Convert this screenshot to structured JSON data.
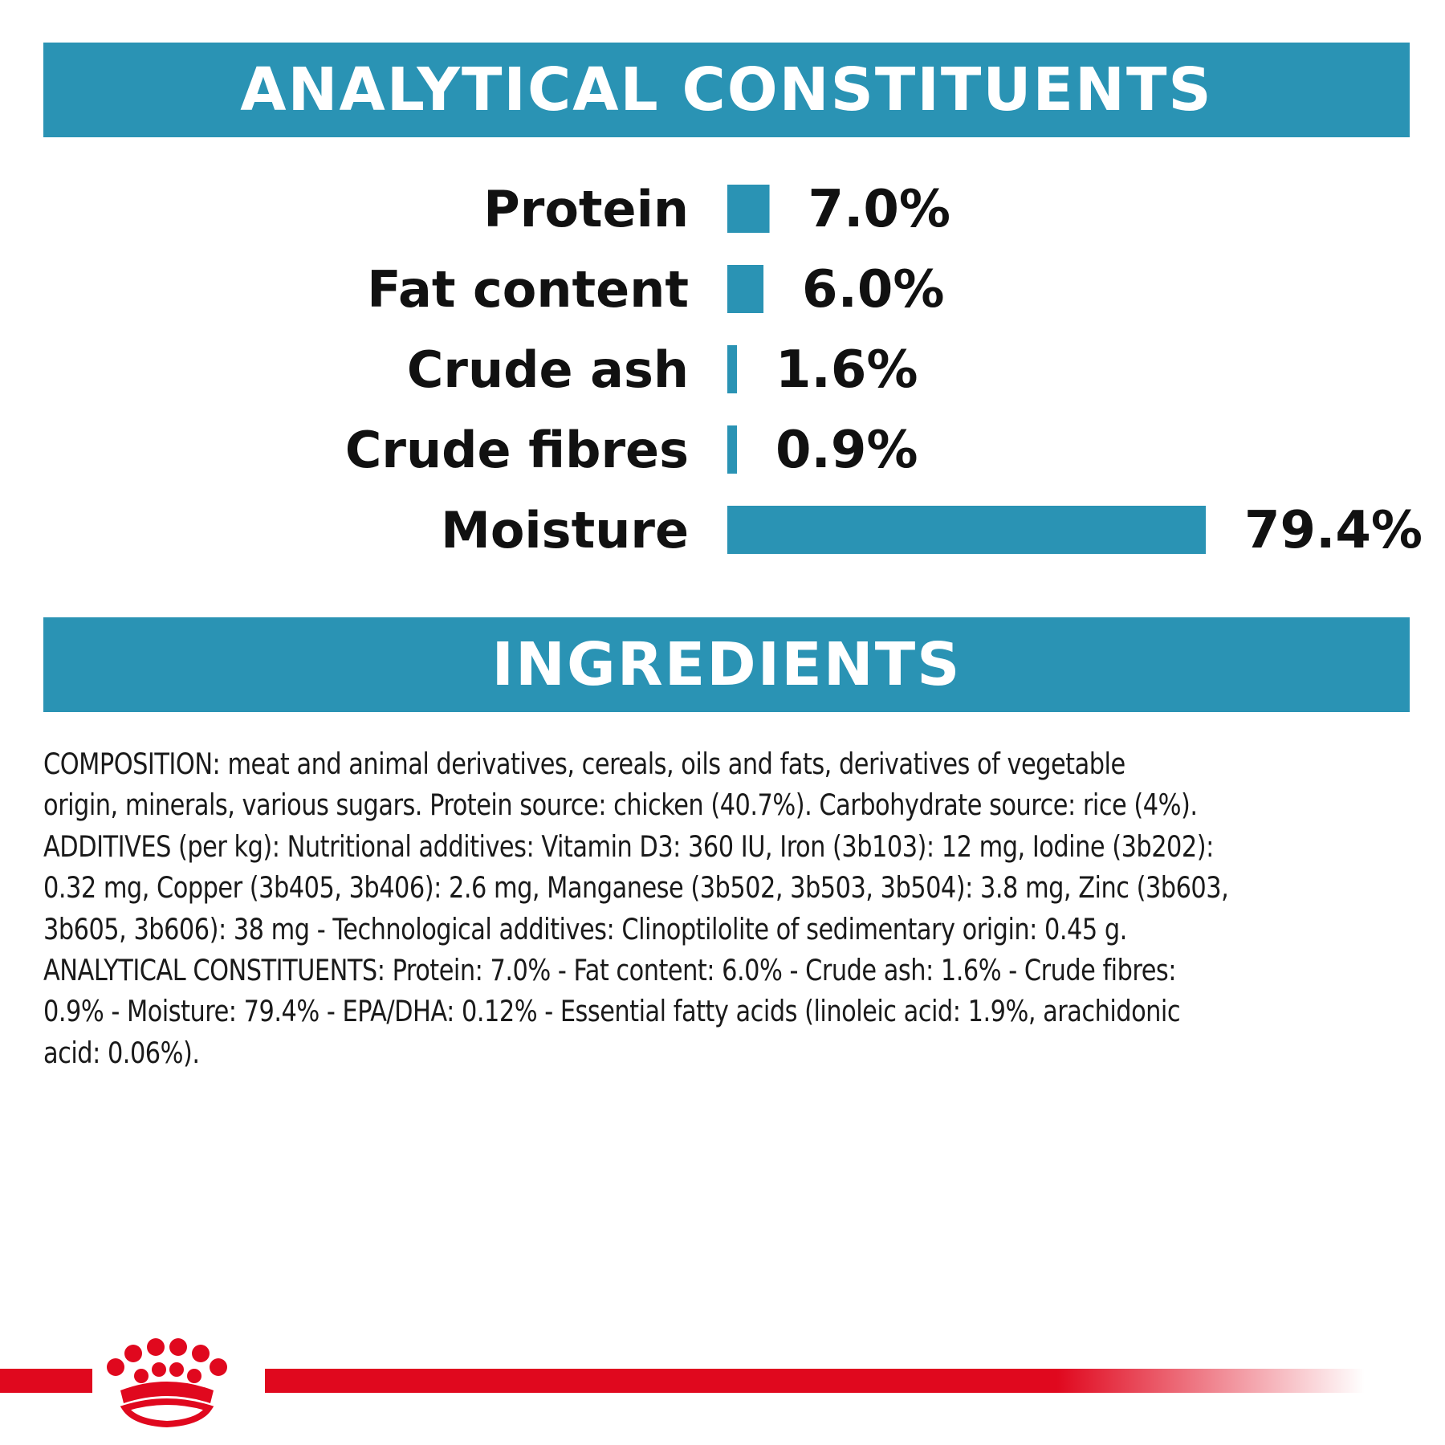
{
  "colors": {
    "accent": "#2a93b4",
    "bar": "#2a93b4",
    "brand_red": "#e0081e",
    "text": "#111111",
    "background": "#ffffff"
  },
  "header": {
    "analytical_title": "ANALYTICAL CONSTITUENTS",
    "ingredients_title": "INGREDIENTS"
  },
  "chart_data": {
    "type": "bar",
    "orientation": "horizontal",
    "categories": [
      "Protein",
      "Fat content",
      "Crude ash",
      "Crude fibres",
      "Moisture"
    ],
    "values": [
      7.0,
      6.0,
      1.6,
      0.9,
      79.4
    ],
    "value_labels": [
      "7.0%",
      "6.0%",
      "1.6%",
      "0.9%",
      "79.4%"
    ],
    "unit": "%",
    "grid": false,
    "axes_visible": false,
    "legend": "none"
  },
  "ingredients": {
    "lines": [
      "COMPOSITION: meat and animal derivatives, cereals, oils and fats, derivatives of vegetable",
      "origin, minerals, various sugars. Protein source: chicken (40.7%). Carbohydrate source: rice (4%).",
      "ADDITIVES (per kg): Nutritional additives: Vitamin D3: 360 IU, Iron (3b103): 12 mg, Iodine (3b202):",
      "0.32 mg, Copper (3b405, 3b406): 2.6 mg, Manganese (3b502, 3b503, 3b504): 3.8 mg, Zinc (3b603,",
      "3b605, 3b606): 38 mg - Technological additives: Clinoptilolite of sedimentary origin: 0.45 g.",
      "ANALYTICAL CONSTITUENTS: Protein: 7.0% - Fat content: 6.0% - Crude ash: 1.6% - Crude fibres:",
      "0.9% - Moisture: 79.4% - EPA/DHA: 0.12% - Essential fatty acids (linoleic acid: 1.9%, arachidonic",
      "acid: 0.06%)."
    ]
  },
  "brand": {
    "logo_icon": "royal-canin-crown-logo",
    "bar_color": "#e0081e"
  }
}
